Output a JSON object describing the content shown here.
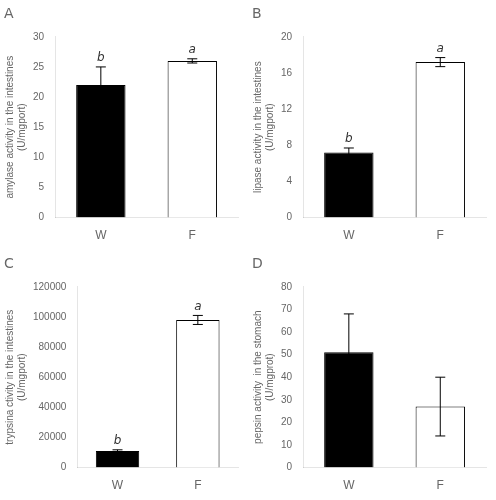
{
  "chart_data": [
    {
      "type": "bar",
      "title": "A",
      "ylabel": "amylase activity in the intestines\n(U/mgport)",
      "categories": [
        "W",
        "F"
      ],
      "values": [
        22,
        26
      ],
      "errors": [
        3.0,
        0.35
      ],
      "colors": [
        "#000000",
        "#ffffff"
      ],
      "annotations": [
        {
          "x": "W",
          "text": "b"
        },
        {
          "x": "F",
          "text": "a"
        }
      ],
      "ylim": [
        0,
        30
      ],
      "yticks": [
        0,
        5,
        10,
        15,
        20,
        25,
        30
      ],
      "grid": false
    },
    {
      "type": "bar",
      "title": "B",
      "ylabel": "lipase activity in the intestines\n(U/mgport)",
      "categories": [
        "W",
        "F"
      ],
      "values": [
        7.2,
        17.2
      ],
      "errors": [
        0.5,
        0.5
      ],
      "colors": [
        "#000000",
        "#ffffff"
      ],
      "annotations": [
        {
          "x": "W",
          "text": "b"
        },
        {
          "x": "F",
          "text": "a"
        }
      ],
      "ylim": [
        0,
        20
      ],
      "yticks": [
        0,
        4,
        8,
        12,
        16,
        20
      ],
      "grid": false
    },
    {
      "type": "bar",
      "title": "C",
      "ylabel": "trypsina ctivity in the intestines\n(U/mgport)",
      "categories": [
        "W",
        "F"
      ],
      "values": [
        11000,
        98000
      ],
      "errors": [
        800,
        3000
      ],
      "colors": [
        "#000000",
        "#ffffff"
      ],
      "annotations": [
        {
          "x": "W",
          "text": "b"
        },
        {
          "x": "F",
          "text": "a"
        }
      ],
      "ylim": [
        0,
        120000
      ],
      "yticks": [
        0,
        20000,
        40000,
        60000,
        80000,
        100000,
        120000
      ],
      "grid": false
    },
    {
      "type": "bar",
      "title": "D",
      "ylabel": "pepsin activity  in the stomach\n(U/mgprot)",
      "categories": [
        "W",
        "F"
      ],
      "values": [
        51,
        27
      ],
      "errors": [
        17,
        13
      ],
      "colors": [
        "#000000",
        "#ffffff"
      ],
      "ylim": [
        0,
        80
      ],
      "yticks": [
        0,
        10,
        20,
        30,
        40,
        50,
        60,
        70,
        80
      ],
      "grid": false
    }
  ]
}
